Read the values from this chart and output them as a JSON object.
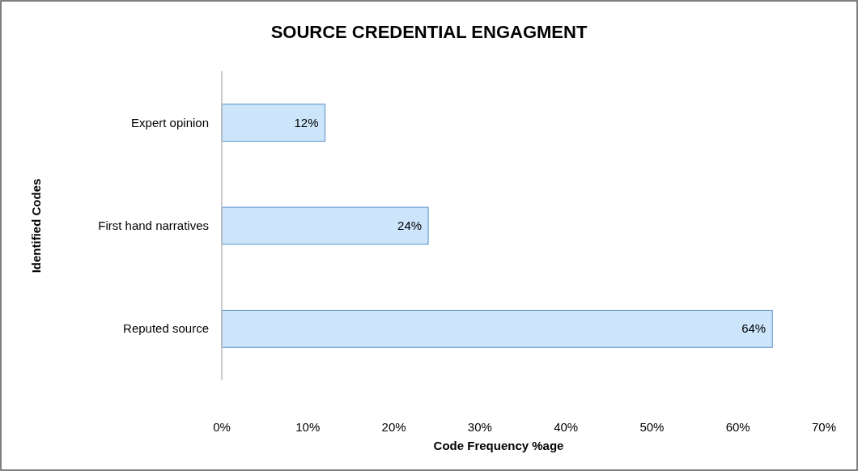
{
  "chart_data": {
    "type": "bar",
    "orientation": "horizontal",
    "title": "SOURCE CREDENTIAL ENGAGMENT",
    "xlabel": "Code Frequency %age",
    "ylabel": "Identified Codes",
    "categories": [
      "Expert opinion",
      "First hand narratives",
      "Reputed source"
    ],
    "values": [
      12,
      24,
      64
    ],
    "value_labels": [
      "12%",
      "24%",
      "64%"
    ],
    "color": "#cce5fb",
    "xlim": [
      0,
      70
    ],
    "xticks": [
      {
        "value": 0,
        "label": "0%"
      },
      {
        "value": 10,
        "label": "10%"
      },
      {
        "value": 20,
        "label": "20%"
      },
      {
        "value": 30,
        "label": "30%"
      },
      {
        "value": 40,
        "label": "40%"
      },
      {
        "value": 50,
        "label": "50%"
      },
      {
        "value": 60,
        "label": "60%"
      },
      {
        "value": 70,
        "label": "70%"
      }
    ],
    "grid": false
  }
}
